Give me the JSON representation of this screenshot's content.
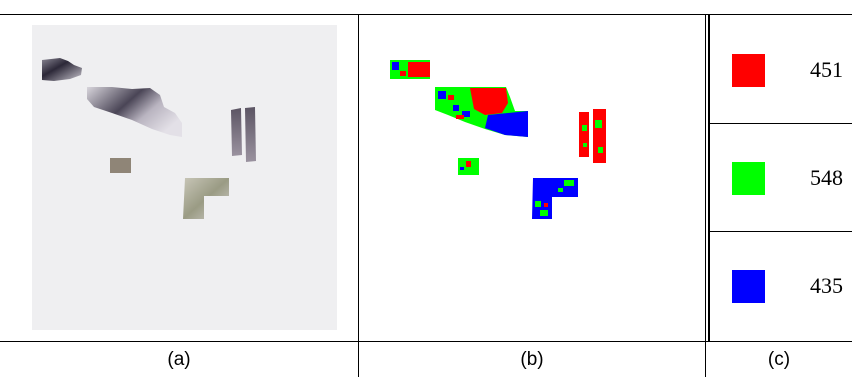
{
  "captions": {
    "a": "(a)",
    "b": "(b)",
    "c": "(c)"
  },
  "colors": {
    "red": "#ff0000",
    "green": "#00ff00",
    "blue": "#0000ff",
    "panel_a_bg": "#efeff1"
  },
  "legend": [
    {
      "color": "#ff0000",
      "count": "451"
    },
    {
      "color": "#00ff00",
      "count": "548"
    },
    {
      "color": "#0000ff",
      "count": "435"
    }
  ]
}
